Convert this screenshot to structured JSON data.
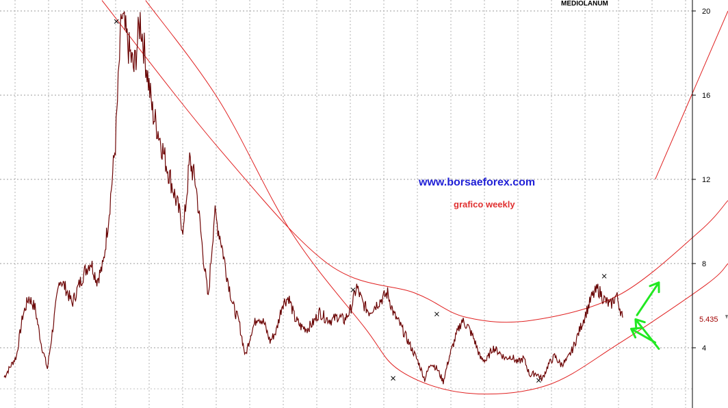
{
  "chart_data": {
    "type": "line",
    "title": "MEDIOLANUM",
    "frequency_label": "grafico weekly",
    "watermark": "www.borsaeforex.com",
    "y_axis": {
      "side": "right",
      "ticks": [
        4,
        8,
        12,
        16,
        20
      ],
      "ylim": [
        2,
        20.2
      ]
    },
    "last_value_label": "5.435",
    "grid": true,
    "colors": {
      "price": "#8b0000",
      "price_dark": "#111111",
      "channel": "#e02020",
      "arrows": "#22e822",
      "site": "#1f1fd6",
      "sub": "#e03030"
    },
    "series": [
      {
        "values": [
          2.6,
          3.1,
          3.6,
          5.5,
          6.4,
          5.9,
          4.2,
          3.0,
          5.2,
          7.3,
          6.8,
          6.1,
          6.9,
          7.6,
          8.1,
          7.2,
          7.9,
          10.5,
          13.7,
          19.8,
          18.4,
          17.2,
          19.6,
          17.4,
          15.2,
          14.2,
          13.0,
          11.9,
          10.8,
          9.6,
          12.9,
          11.8,
          8.9,
          6.3,
          10.4,
          9.2,
          7.5,
          6.0,
          5.2,
          3.6,
          4.8,
          5.5,
          5.2,
          4.3,
          4.8,
          6.1,
          6.4,
          5.4,
          5.0,
          4.9,
          5.2,
          5.7,
          5.4,
          5.3,
          5.5,
          5.3,
          5.8,
          6.9,
          6.1,
          5.7,
          6.0,
          6.3,
          6.6,
          5.6,
          5.1,
          4.5,
          3.9,
          3.3,
          2.5,
          3.3,
          3.0,
          2.4,
          3.6,
          4.5,
          5.3,
          5.0,
          4.4,
          3.5,
          3.4,
          4.0,
          3.8,
          3.5,
          3.6,
          3.3,
          3.5,
          2.7,
          2.8,
          2.5,
          3.2,
          3.6,
          3.2,
          3.4,
          4.0,
          4.8,
          5.6,
          6.4,
          6.8,
          6.3,
          6.0,
          6.5,
          5.435
        ]
      }
    ],
    "channel_lines": [
      {
        "name": "upper",
        "points": [
          [
            0.14,
            20.5
          ],
          [
            0.3,
            13.5
          ],
          [
            0.45,
            8.0
          ],
          [
            0.57,
            6.6
          ],
          [
            0.64,
            5.45
          ],
          [
            0.73,
            5.3
          ],
          [
            0.85,
            6.5
          ],
          [
            0.96,
            9.5
          ],
          [
            1.0,
            11.0
          ]
        ]
      },
      {
        "name": "lower",
        "points": [
          [
            0.2,
            20.5
          ],
          [
            0.3,
            15.8
          ],
          [
            0.4,
            9.5
          ],
          [
            0.5,
            5.0
          ],
          [
            0.55,
            2.9
          ],
          [
            0.64,
            1.85
          ],
          [
            0.75,
            2.2
          ],
          [
            0.85,
            4.2
          ],
          [
            0.97,
            7.0
          ],
          [
            1.0,
            8.0
          ]
        ]
      },
      {
        "name": "upper-right",
        "points": [
          [
            0.9,
            12.0
          ],
          [
            1.0,
            20.0
          ]
        ]
      }
    ],
    "touch_markers": [
      {
        "fx": 0.16,
        "value": 19.5
      },
      {
        "fx": 0.485,
        "value": 6.75
      },
      {
        "fx": 0.54,
        "value": 2.55
      },
      {
        "fx": 0.6,
        "value": 5.6
      },
      {
        "fx": 0.74,
        "value": 2.45
      },
      {
        "fx": 0.83,
        "value": 7.4
      }
    ],
    "arrows": [
      {
        "from": [
          0.875,
          5.55
        ],
        "to": [
          0.905,
          7.1
        ]
      },
      {
        "from": [
          0.9,
          4.25
        ],
        "to": [
          0.867,
          4.9
        ]
      },
      {
        "from": [
          0.905,
          3.95
        ],
        "to": [
          0.873,
          5.35
        ]
      }
    ]
  }
}
